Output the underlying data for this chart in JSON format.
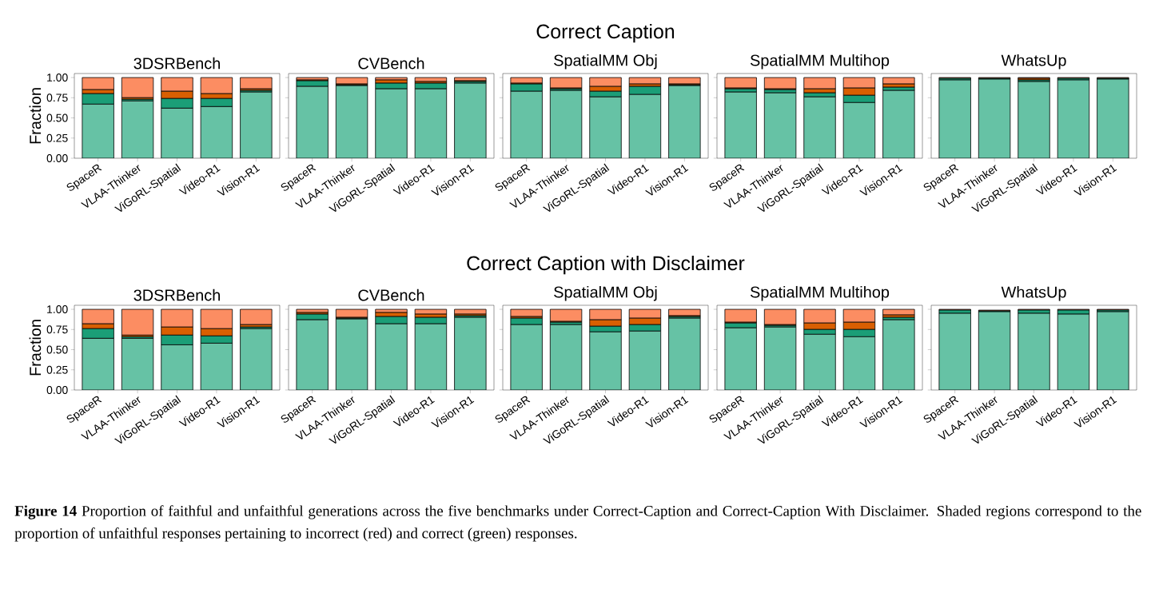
{
  "chart_data": [
    {
      "type": "bar",
      "stacked": true,
      "title": "3DSRBench",
      "ylabel": "Fraction",
      "categories": [
        "SpaceR",
        "VLAA-Thinker",
        "ViGoRL-Spatial",
        "Video-R1",
        "Vision-R1"
      ],
      "ylim": [
        0,
        1.05
      ],
      "yticks": [
        {
          "value": 0,
          "label": "0.00"
        },
        {
          "value": 0.25,
          "label": "0.25"
        },
        {
          "value": 0.5,
          "label": "0.50"
        },
        {
          "value": 0.75,
          "label": "0.75"
        },
        {
          "value": 1,
          "label": "1.00"
        }
      ],
      "series": [
        {
          "color": "#66c2a5",
          "values": [
            0.67,
            0.71,
            0.62,
            0.64,
            0.82
          ]
        },
        {
          "color": "#1b9e77",
          "values": [
            0.13,
            0.02,
            0.12,
            0.1,
            0.02
          ]
        },
        {
          "color": "#d95f02",
          "values": [
            0.05,
            0.02,
            0.09,
            0.06,
            0.02
          ]
        },
        {
          "color": "#fc8d62",
          "values": [
            0.15,
            0.25,
            0.17,
            0.2,
            0.14
          ]
        }
      ]
    },
    {
      "type": "bar",
      "stacked": true,
      "title": "CVBench",
      "tick_labels": "x",
      "categories": [
        "SpaceR",
        "VLAA-Thinker",
        "ViGoRL-Spatial",
        "Video-R1",
        "Vision-R1"
      ],
      "ylim": [
        0,
        1.05
      ],
      "yticks": [
        0,
        0.25,
        0.5,
        0.75,
        1
      ],
      "series": [
        {
          "color": "#66c2a5",
          "values": [
            0.89,
            0.9,
            0.86,
            0.86,
            0.93
          ]
        },
        {
          "color": "#1b9e77",
          "values": [
            0.07,
            0.01,
            0.07,
            0.07,
            0.02
          ]
        },
        {
          "color": "#d95f02",
          "values": [
            0.01,
            0.01,
            0.04,
            0.02,
            0.01
          ]
        },
        {
          "color": "#fc8d62",
          "values": [
            0.03,
            0.08,
            0.03,
            0.05,
            0.04
          ]
        }
      ]
    },
    {
      "type": "bar",
      "stacked": true,
      "title": "SpatialMM Obj",
      "annotations": [
        "Correct Caption"
      ],
      "tick_labels": "x",
      "categories": [
        "SpaceR",
        "VLAA-Thinker",
        "ViGoRL-Spatial",
        "Video-R1",
        "Vision-R1"
      ],
      "ylim": [
        0,
        1.05
      ],
      "yticks": [
        0,
        0.25,
        0.5,
        0.75,
        1
      ],
      "series": [
        {
          "color": "#66c2a5",
          "values": [
            0.83,
            0.84,
            0.76,
            0.79,
            0.9
          ]
        },
        {
          "color": "#1b9e77",
          "values": [
            0.09,
            0.02,
            0.07,
            0.1,
            0.01
          ]
        },
        {
          "color": "#d95f02",
          "values": [
            0.01,
            0.01,
            0.06,
            0.03,
            0.01
          ]
        },
        {
          "color": "#fc8d62",
          "values": [
            0.07,
            0.13,
            0.11,
            0.08,
            0.08
          ]
        }
      ]
    },
    {
      "type": "bar",
      "stacked": true,
      "title": "SpatialMM Multihop",
      "tick_labels": "x",
      "categories": [
        "SpaceR",
        "VLAA-Thinker",
        "ViGoRL-Spatial",
        "Video-R1",
        "Vision-R1"
      ],
      "ylim": [
        0,
        1.05
      ],
      "yticks": [
        0,
        0.25,
        0.5,
        0.75,
        1
      ],
      "series": [
        {
          "color": "#66c2a5",
          "values": [
            0.82,
            0.81,
            0.76,
            0.69,
            0.84
          ]
        },
        {
          "color": "#1b9e77",
          "values": [
            0.04,
            0.04,
            0.05,
            0.09,
            0.04
          ]
        },
        {
          "color": "#d95f02",
          "values": [
            0.01,
            0.01,
            0.05,
            0.09,
            0.04
          ]
        },
        {
          "color": "#fc8d62",
          "values": [
            0.13,
            0.14,
            0.14,
            0.13,
            0.08
          ]
        }
      ]
    },
    {
      "type": "bar",
      "stacked": true,
      "title": "WhatsUp",
      "tick_labels": "x",
      "categories": [
        "SpaceR",
        "VLAA-Thinker",
        "ViGoRL-Spatial",
        "Video-R1",
        "Vision-R1"
      ],
      "ylim": [
        0,
        1.05
      ],
      "yticks": [
        0,
        0.25,
        0.5,
        0.75,
        1
      ],
      "series": [
        {
          "color": "#66c2a5",
          "values": [
            0.97,
            0.98,
            0.95,
            0.97,
            0.98
          ]
        },
        {
          "color": "#1b9e77",
          "values": [
            0.02,
            0.01,
            0.02,
            0.02,
            0.01
          ]
        },
        {
          "color": "#d95f02",
          "values": [
            0.0,
            0.0,
            0.02,
            0.0,
            0.0
          ]
        },
        {
          "color": "#fc8d62",
          "values": [
            0.01,
            0.01,
            0.01,
            0.01,
            0.01
          ]
        }
      ]
    },
    {
      "type": "bar",
      "stacked": true,
      "title": "3DSRBench",
      "ylabel": "Fraction",
      "categories": [
        "SpaceR",
        "VLAA-Thinker",
        "ViGoRL-Spatial",
        "Video-R1",
        "Vision-R1"
      ],
      "ylim": [
        0,
        1.05
      ],
      "yticks": [
        {
          "value": 0,
          "label": "0.00"
        },
        {
          "value": 0.25,
          "label": "0.25"
        },
        {
          "value": 0.5,
          "label": "0.50"
        },
        {
          "value": 0.75,
          "label": "0.75"
        },
        {
          "value": 1,
          "label": "1.00"
        }
      ],
      "series": [
        {
          "color": "#66c2a5",
          "values": [
            0.64,
            0.64,
            0.56,
            0.58,
            0.76
          ]
        },
        {
          "color": "#1b9e77",
          "values": [
            0.12,
            0.02,
            0.12,
            0.09,
            0.02
          ]
        },
        {
          "color": "#d95f02",
          "values": [
            0.06,
            0.02,
            0.1,
            0.09,
            0.03
          ]
        },
        {
          "color": "#fc8d62",
          "values": [
            0.18,
            0.32,
            0.22,
            0.24,
            0.19
          ]
        }
      ]
    },
    {
      "type": "bar",
      "stacked": true,
      "title": "CVBench",
      "tick_labels": "x",
      "categories": [
        "SpaceR",
        "VLAA-Thinker",
        "ViGoRL-Spatial",
        "Video-R1",
        "Vision-R1"
      ],
      "ylim": [
        0,
        1.05
      ],
      "yticks": [
        0,
        0.25,
        0.5,
        0.75,
        1
      ],
      "series": [
        {
          "color": "#66c2a5",
          "values": [
            0.87,
            0.88,
            0.82,
            0.82,
            0.9
          ]
        },
        {
          "color": "#1b9e77",
          "values": [
            0.07,
            0.01,
            0.09,
            0.08,
            0.02
          ]
        },
        {
          "color": "#d95f02",
          "values": [
            0.02,
            0.01,
            0.05,
            0.04,
            0.02
          ]
        },
        {
          "color": "#fc8d62",
          "values": [
            0.04,
            0.1,
            0.04,
            0.06,
            0.06
          ]
        }
      ]
    },
    {
      "type": "bar",
      "stacked": true,
      "title": "SpatialMM Obj",
      "annotations": [
        "Correct Caption with Disclaimer"
      ],
      "tick_labels": "x",
      "categories": [
        "SpaceR",
        "VLAA-Thinker",
        "ViGoRL-Spatial",
        "Video-R1",
        "Vision-R1"
      ],
      "ylim": [
        0,
        1.05
      ],
      "yticks": [
        0,
        0.25,
        0.5,
        0.75,
        1
      ],
      "series": [
        {
          "color": "#66c2a5",
          "values": [
            0.81,
            0.81,
            0.72,
            0.73,
            0.89
          ]
        },
        {
          "color": "#1b9e77",
          "values": [
            0.08,
            0.03,
            0.07,
            0.08,
            0.02
          ]
        },
        {
          "color": "#d95f02",
          "values": [
            0.02,
            0.01,
            0.08,
            0.08,
            0.01
          ]
        },
        {
          "color": "#fc8d62",
          "values": [
            0.09,
            0.15,
            0.13,
            0.11,
            0.08
          ]
        }
      ]
    },
    {
      "type": "bar",
      "stacked": true,
      "title": "SpatialMM Multihop",
      "tick_labels": "x",
      "categories": [
        "SpaceR",
        "VLAA-Thinker",
        "ViGoRL-Spatial",
        "Video-R1",
        "Vision-R1"
      ],
      "ylim": [
        0,
        1.05
      ],
      "yticks": [
        0,
        0.25,
        0.5,
        0.75,
        1
      ],
      "series": [
        {
          "color": "#66c2a5",
          "values": [
            0.77,
            0.78,
            0.69,
            0.66,
            0.87
          ]
        },
        {
          "color": "#1b9e77",
          "values": [
            0.06,
            0.02,
            0.06,
            0.09,
            0.03
          ]
        },
        {
          "color": "#d95f02",
          "values": [
            0.01,
            0.01,
            0.08,
            0.09,
            0.03
          ]
        },
        {
          "color": "#fc8d62",
          "values": [
            0.16,
            0.19,
            0.17,
            0.16,
            0.07
          ]
        }
      ]
    },
    {
      "type": "bar",
      "stacked": true,
      "title": "WhatsUp",
      "annotations": [
        "**Figure 14** Proportion of faithful and unfaithful generations across the five benchmarks under Correct-Caption and Correct-Caption With Disclaimer. Shaded regions correspond to the proportion of unfaithful responses pertaining to incorrect (red) and correct (green) responses."
      ],
      "tick_labels": "x",
      "categories": [
        "SpaceR",
        "VLAA-Thinker",
        "ViGoRL-Spatial",
        "Video-R1",
        "Vision-R1"
      ],
      "ylim": [
        0,
        1.05
      ],
      "yticks": [
        0,
        0.25,
        0.5,
        0.75,
        1
      ],
      "series": [
        {
          "color": "#66c2a5",
          "values": [
            0.95,
            0.97,
            0.95,
            0.94,
            0.97
          ]
        },
        {
          "color": "#1b9e77",
          "values": [
            0.04,
            0.01,
            0.04,
            0.05,
            0.02
          ]
        },
        {
          "color": "#d95f02",
          "values": [
            0.0,
            0.0,
            0.0,
            0.0,
            0.0
          ]
        },
        {
          "color": "#fc8d62",
          "values": [
            0.01,
            0.01,
            0.01,
            0.01,
            0.01
          ]
        }
      ]
    }
  ]
}
